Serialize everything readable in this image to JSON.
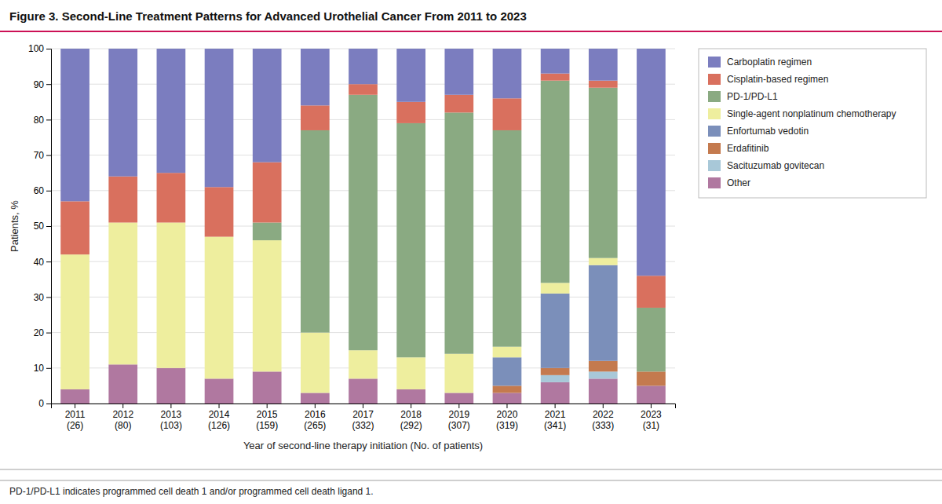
{
  "chart_data": {
    "type": "bar",
    "stacked": true,
    "title": "Figure 3. Second-Line Treatment Patterns for Advanced Urothelial Cancer From 2011 to 2023",
    "xlabel": "Year of second-line therapy initiation (No. of patients)",
    "ylabel": "Patients, %",
    "footnote": "PD-1/PD-L1 indicates programmed cell death 1 and/or programmed cell death ligand 1.",
    "categories": [
      "2011\n(26)",
      "2012\n(80)",
      "2013\n(103)",
      "2014\n(126)",
      "2015\n(159)",
      "2016\n(265)",
      "2017\n(332)",
      "2018\n(292)",
      "2019\n(307)",
      "2020\n(319)",
      "2021\n(341)",
      "2022\n(333)",
      "2023\n(31)"
    ],
    "series": [
      {
        "name": "Other",
        "color": "#b078a0",
        "values": [
          4,
          11,
          10,
          7,
          9,
          3,
          7,
          4,
          3,
          3,
          6,
          7,
          5
        ]
      },
      {
        "name": "Sacituzumab govitecan",
        "color": "#a8c8d8",
        "values": [
          0,
          0,
          0,
          0,
          0,
          0,
          0,
          0,
          0,
          0,
          2,
          2,
          0
        ]
      },
      {
        "name": "Erdafitinib",
        "color": "#c47a4e",
        "values": [
          0,
          0,
          0,
          0,
          0,
          0,
          0,
          0,
          0,
          2,
          2,
          3,
          4
        ]
      },
      {
        "name": "Enfortumab vedotin",
        "color": "#7b8fba",
        "values": [
          0,
          0,
          0,
          0,
          0,
          0,
          0,
          0,
          0,
          8,
          21,
          27,
          0
        ]
      },
      {
        "name": "Single-agent nonplatinum chemotherapy",
        "color": "#eeee9e",
        "values": [
          38,
          40,
          41,
          40,
          37,
          17,
          8,
          9,
          11,
          3,
          3,
          2,
          0
        ]
      },
      {
        "name": "PD-1/PD-L1",
        "color": "#8aaa82",
        "values": [
          0,
          0,
          0,
          0,
          5,
          57,
          72,
          66,
          68,
          61,
          57,
          48,
          18
        ]
      },
      {
        "name": "Cisplatin-based regimen",
        "color": "#d9705e",
        "values": [
          15,
          13,
          14,
          14,
          17,
          7,
          3,
          6,
          5,
          9,
          2,
          2,
          9
        ]
      },
      {
        "name": "Carboplatin regimen",
        "color": "#7b7dbf",
        "values": [
          43,
          36,
          35,
          39,
          32,
          16,
          10,
          15,
          13,
          14,
          7,
          9,
          64
        ]
      }
    ],
    "ylim": [
      0,
      100
    ],
    "yticks": [
      0,
      10,
      20,
      30,
      40,
      50,
      60,
      70,
      80,
      90,
      100
    ],
    "grid": true,
    "legend": "right"
  }
}
